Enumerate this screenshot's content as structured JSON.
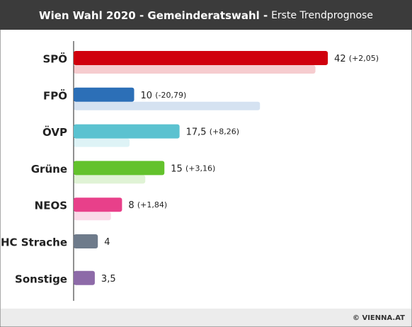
{
  "chart_data": {
    "type": "bar",
    "title": "Wien Wahl 2020 - Gemeinderatswahl -",
    "subtitle": "Erste Trendprognose",
    "source": "© VIENNA.AT",
    "categories": [
      "SPÖ",
      "FPÖ",
      "ÖVP",
      "Grüne",
      "NEOS",
      "HC Strache",
      "Sonstige"
    ],
    "values": [
      42,
      10,
      17.5,
      15,
      8,
      4,
      3.5
    ],
    "value_labels": [
      "42",
      "10",
      "17,5",
      "15",
      "8",
      "4",
      "3,5"
    ],
    "previous_values": [
      39.95,
      30.79,
      9.24,
      11.84,
      6.16,
      null,
      null
    ],
    "changes": [
      2.05,
      -20.79,
      8.26,
      3.16,
      1.84,
      null,
      null
    ],
    "change_labels": [
      "(+2,05)",
      "(-20,79)",
      "(+8,26)",
      "(+3,16)",
      "(+1,84)",
      null,
      null
    ],
    "colors": [
      "#d0000d",
      "#2c6fb7",
      "#5bc2d0",
      "#63c22c",
      "#e8408a",
      "#6e7b8b",
      "#8d6aa8"
    ],
    "xlim": [
      0,
      44
    ]
  }
}
